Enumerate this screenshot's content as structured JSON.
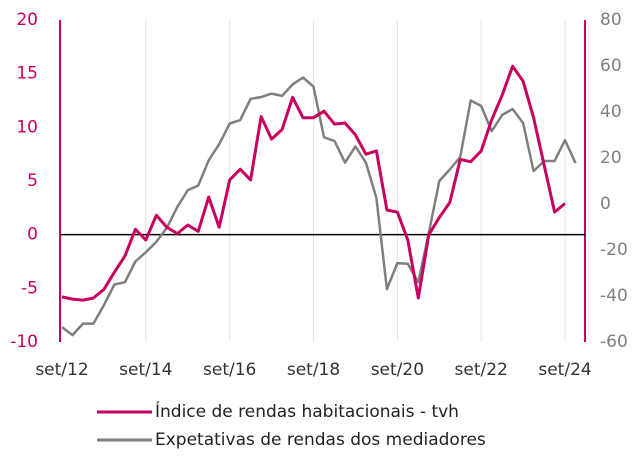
{
  "chart_data": {
    "type": "line",
    "categories": [
      "set/12",
      null,
      null,
      null,
      null,
      null,
      null,
      null,
      "set/14",
      null,
      null,
      null,
      null,
      null,
      null,
      null,
      "set/16",
      null,
      null,
      null,
      null,
      null,
      null,
      null,
      "set/18",
      null,
      null,
      null,
      null,
      null,
      null,
      null,
      "set/20",
      null,
      null,
      null,
      null,
      null,
      null,
      null,
      "set/22",
      null,
      null,
      null,
      null,
      null,
      null,
      null,
      "set/24",
      null
    ],
    "series": [
      {
        "name": "Índice de rendas habitacionais - tvh",
        "color": "#c8005f",
        "axis": "y",
        "values": [
          -5.8,
          -6.0,
          -6.1,
          -5.9,
          -5.1,
          -3.5,
          -2.0,
          0.5,
          -0.5,
          1.8,
          0.7,
          0.1,
          0.9,
          0.3,
          3.5,
          0.7,
          5.1,
          6.1,
          5.1,
          11,
          8.9,
          9.8,
          12.8,
          10.9,
          10.9,
          11.5,
          10.3,
          10.4,
          9.3,
          7.5,
          7.8,
          2.3,
          2.1,
          -0.5,
          -5.9,
          0,
          1.6,
          3.0,
          7.0,
          6.8,
          7.8,
          10.7,
          13.0,
          15.7,
          14.3,
          10.9,
          6.5,
          2.1,
          2.9,
          null
        ]
      },
      {
        "name": "Expetativas de rendas dos mediadores",
        "color": "#7f7f7f",
        "axis": "y2",
        "values": [
          -53.5,
          -57,
          -52,
          -52,
          -44,
          -35,
          -34,
          -25,
          -21,
          -16.5,
          -10.4,
          -1.3,
          6,
          8,
          19,
          26,
          35,
          36.5,
          45.7,
          46.5,
          48,
          47,
          52,
          55,
          51,
          29,
          27.4,
          18,
          25,
          18,
          2.6,
          -37,
          -25.7,
          -26,
          -34,
          -12.6,
          10,
          15,
          20.4,
          45,
          42.6,
          31.7,
          38.7,
          41.3,
          35.2,
          14.3,
          18.7,
          18.7,
          27.8,
          17.8
        ]
      }
    ],
    "ylim": [
      -10,
      20
    ],
    "yticks": [
      -10,
      -5,
      0,
      5,
      10,
      15,
      20
    ],
    "y2lim": [
      -60,
      80
    ],
    "y2ticks": [
      -60,
      -40,
      -20,
      0,
      20,
      40,
      60,
      80
    ],
    "grid": true
  }
}
